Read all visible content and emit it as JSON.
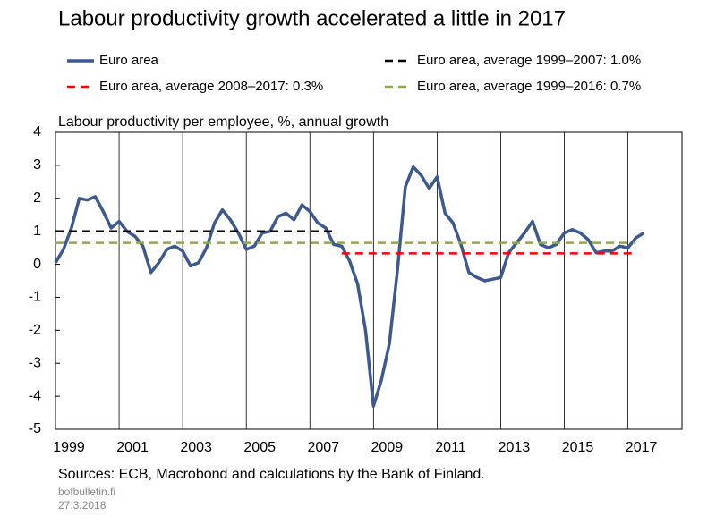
{
  "chart_data": {
    "type": "line",
    "title": "Labour productivity growth accelerated a little in 2017",
    "y_label": "Labour productivity per employee, %, annual growth",
    "source": "Sources: ECB, Macrobond and calculations by the Bank of Finland.",
    "site": "bofbulletin.fi",
    "date": "27.3.2018",
    "xlim": [
      1999,
      2018.7
    ],
    "ylim": [
      -5,
      4
    ],
    "yticks": [
      -5,
      -4,
      -3,
      -2,
      -1,
      0,
      1,
      2,
      3,
      4
    ],
    "xticks": [
      1999,
      2001,
      2003,
      2005,
      2007,
      2009,
      2011,
      2013,
      2015,
      2017
    ],
    "grid": true,
    "series": [
      {
        "name": "Euro area",
        "color": "#3c5a8e",
        "dash": "solid",
        "x": [
          1999,
          1999.25,
          1999.5,
          1999.75,
          2000,
          2000.25,
          2000.5,
          2000.75,
          2001,
          2001.25,
          2001.5,
          2001.75,
          2002,
          2002.25,
          2002.5,
          2002.75,
          2003,
          2003.25,
          2003.5,
          2003.75,
          2004,
          2004.25,
          2004.5,
          2004.75,
          2005,
          2005.25,
          2005.5,
          2005.75,
          2006,
          2006.25,
          2006.5,
          2006.75,
          2007,
          2007.25,
          2007.5,
          2007.75,
          2008,
          2008.25,
          2008.5,
          2008.75,
          2009,
          2009.25,
          2009.5,
          2009.75,
          2010,
          2010.25,
          2010.5,
          2010.75,
          2011,
          2011.25,
          2011.5,
          2011.75,
          2012,
          2012.25,
          2012.5,
          2012.75,
          2013,
          2013.25,
          2013.5,
          2013.75,
          2014,
          2014.25,
          2014.5,
          2014.75,
          2015,
          2015.25,
          2015.5,
          2015.75,
          2016,
          2016.25,
          2016.5,
          2016.75,
          2017,
          2017.25,
          2017.5
        ],
        "values": [
          0.05,
          0.45,
          1.1,
          2.0,
          1.95,
          2.05,
          1.6,
          1.1,
          1.3,
          1.0,
          0.85,
          0.55,
          -0.25,
          0.05,
          0.45,
          0.55,
          0.4,
          -0.05,
          0.05,
          0.5,
          1.25,
          1.65,
          1.35,
          0.95,
          0.45,
          0.55,
          0.95,
          1.0,
          1.45,
          1.55,
          1.35,
          1.8,
          1.6,
          1.25,
          1.1,
          0.6,
          0.55,
          0.1,
          -0.6,
          -2.0,
          -4.3,
          -3.5,
          -2.4,
          -0.2,
          2.35,
          2.95,
          2.7,
          2.3,
          2.65,
          1.55,
          1.25,
          0.6,
          -0.25,
          -0.4,
          -0.5,
          -0.45,
          -0.4,
          0.35,
          0.65,
          0.95,
          1.3,
          0.6,
          0.5,
          0.6,
          0.95,
          1.05,
          0.95,
          0.75,
          0.35,
          0.4,
          0.4,
          0.55,
          0.5,
          0.8,
          0.95
        ]
      },
      {
        "name": "Euro area, average 1999–2007:  1.0%",
        "color": "#000000",
        "dash": "dashed",
        "x": [
          1999,
          2007.75
        ],
        "values": [
          1.0,
          1.0
        ]
      },
      {
        "name": "Euro area, average 2008–2017:  0.3%",
        "color": "#ff0000",
        "dash": "dashed",
        "x": [
          2008,
          2017.2
        ],
        "values": [
          0.33,
          0.33
        ]
      },
      {
        "name": "Euro area, average 1999–2016:  0.7%",
        "color": "#8faa4a",
        "dash": "dashed",
        "x": [
          1999,
          2017.2
        ],
        "values": [
          0.65,
          0.65
        ]
      }
    ]
  }
}
